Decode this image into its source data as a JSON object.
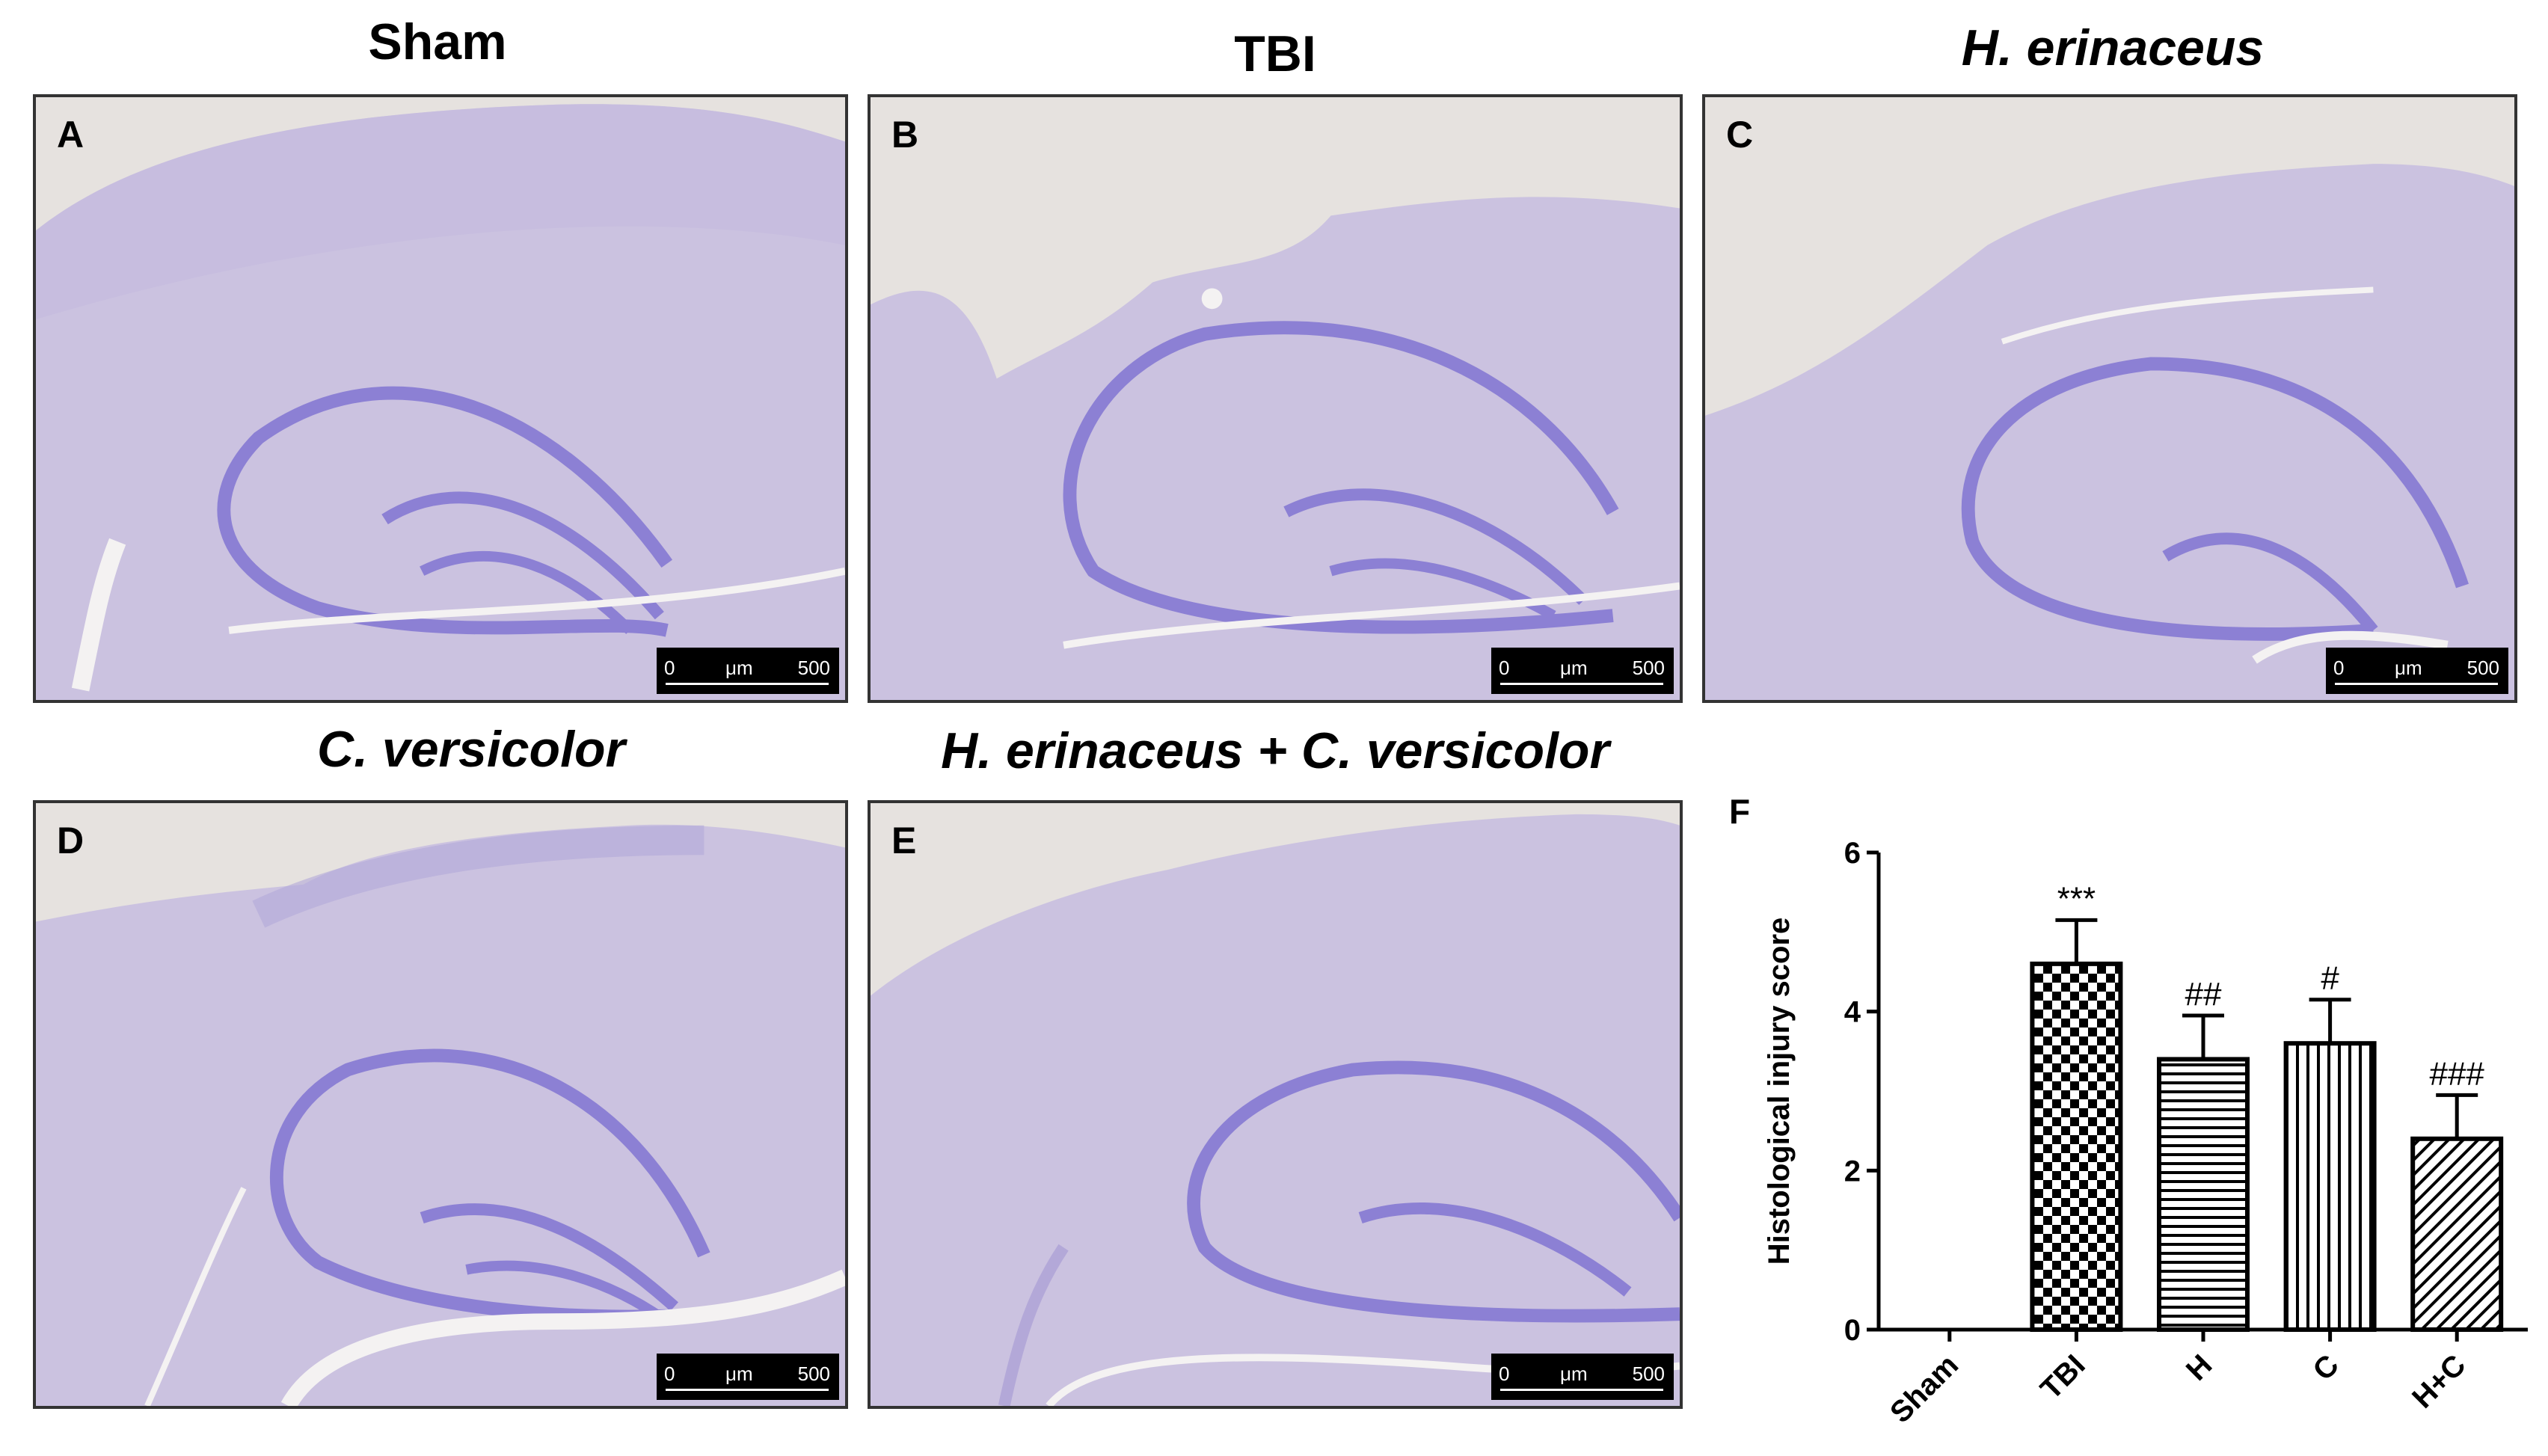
{
  "panels": [
    {
      "letter": "A",
      "title": "Sham",
      "italic": false
    },
    {
      "letter": "B",
      "title": "TBI",
      "italic": false
    },
    {
      "letter": "C",
      "title": "H. erinaceus",
      "italic": true
    },
    {
      "letter": "D",
      "title": "C. versicolor",
      "italic": true
    },
    {
      "letter": "E",
      "title": "H. erinaceus + C. versicolor",
      "italic": true
    }
  ],
  "scale_bar": {
    "start": "0",
    "unit": "μm",
    "end": "500"
  },
  "chart_letter": "F",
  "chart_data": {
    "type": "bar",
    "categories": [
      "Sham",
      "TBI",
      "H",
      "C",
      "H+C"
    ],
    "values": [
      0,
      4.6,
      3.4,
      3.6,
      2.4
    ],
    "errors": [
      0,
      0.55,
      0.55,
      0.55,
      0.55
    ],
    "significance": [
      "",
      "***",
      "##",
      "#",
      "###"
    ],
    "patterns": [
      "none",
      "checker",
      "horizontal-lines",
      "vertical-lines",
      "diagonal-lines"
    ],
    "ylabel": "Histological injury score",
    "ylim": [
      0,
      6
    ],
    "yticks": [
      "0",
      "2",
      "4",
      "6"
    ],
    "grid": false
  },
  "colors": {
    "stain": "#c8c0e0",
    "dark_stain": "#8c80d4",
    "background_glass": "#e6e2df"
  }
}
